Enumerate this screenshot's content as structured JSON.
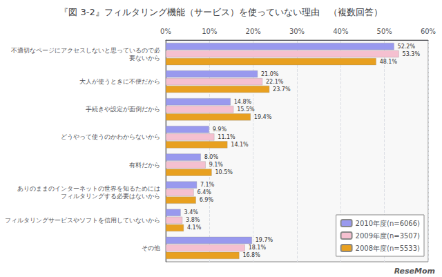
{
  "chart_data": {
    "type": "bar",
    "orientation": "horizontal",
    "title": "『図 3-2』フィルタリング機能（サービス）を使っていない理由　（複数回答）",
    "categories": [
      "不適切なページにアクセスしないと思っているので必\n要ないから",
      "大人が使うときに不便だから",
      "手続きや設定が面倒だから",
      "どうやって使うのかわからないから",
      "有料だから",
      "ありのままのインターネットの世界を知るためには\nフィルタリングする必要はないから",
      "フィルタリングサービスやソフトを信用していないから",
      "その他"
    ],
    "series": [
      {
        "name": "2010年度(n=6066)",
        "color": "#9999ee",
        "values": [
          52.2,
          21.0,
          14.8,
          9.9,
          8.0,
          7.1,
          3.4,
          19.7
        ],
        "value_labels": [
          "52.2%",
          "21.0%",
          "14.8%",
          "9.9%",
          "8.0%",
          "7.1%",
          "3.4%",
          "19.7%"
        ]
      },
      {
        "name": "2009年度(n=3507)",
        "color": "#f5c0d0",
        "values": [
          53.3,
          22.1,
          15.5,
          11.1,
          9.1,
          6.4,
          3.8,
          18.1
        ],
        "value_labels": [
          "53.3%",
          "22.1%",
          "15.5%",
          "11.1%",
          "9.1%",
          "6.4%",
          "3.8%",
          "18.1%"
        ]
      },
      {
        "name": "2008年度(n=5533)",
        "color": "#e8a020",
        "values": [
          48.1,
          23.7,
          19.4,
          14.1,
          10.5,
          6.9,
          4.1,
          16.8
        ],
        "value_labels": [
          "48.1%",
          "23.7%",
          "19.4%",
          "14.1%",
          "10.5%",
          "6.9%",
          "4.1%",
          "16.8%"
        ]
      }
    ],
    "xlim": [
      0,
      60
    ],
    "xticks": [
      {
        "value": 0,
        "label": "0%"
      },
      {
        "value": 10,
        "label": "10%"
      },
      {
        "value": 20,
        "label": "20%"
      },
      {
        "value": 30,
        "label": "30%"
      },
      {
        "value": 40,
        "label": "40%"
      },
      {
        "value": 50,
        "label": "50%"
      },
      {
        "value": 60,
        "label": "60%"
      }
    ],
    "grid": true,
    "legend": "lower right",
    "data_labels": true,
    "annotations": [
      "ReseMom"
    ]
  }
}
